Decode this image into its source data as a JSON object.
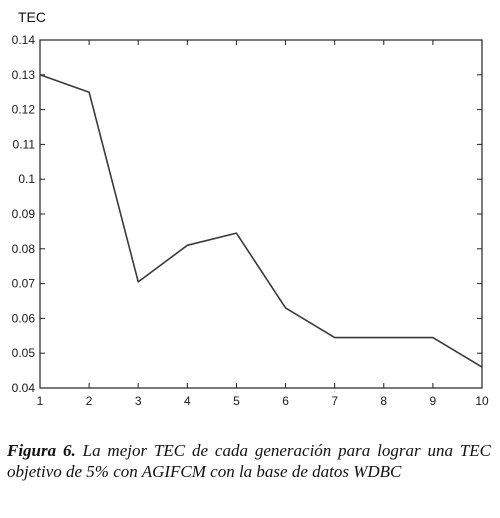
{
  "chart_data": {
    "type": "line",
    "title": "",
    "ylabel": "TEC",
    "xlabel": "",
    "x": [
      1,
      2,
      3,
      4,
      5,
      6,
      7,
      8,
      9,
      10
    ],
    "series": [
      {
        "values": [
          0.13,
          0.125,
          0.0705,
          0.081,
          0.0845,
          0.063,
          0.0545,
          0.0545,
          0.0545,
          0.046
        ]
      }
    ],
    "xlim": [
      1,
      10
    ],
    "ylim": [
      0.04,
      0.14
    ],
    "xticks": [
      "1",
      "2",
      "3",
      "4",
      "5",
      "6",
      "7",
      "8",
      "9",
      "10"
    ],
    "yticks": [
      "0.04",
      "0.05",
      "0.06",
      "0.07",
      "0.08",
      "0.09",
      "0.1",
      "0.11",
      "0.12",
      "0.13",
      "0.14"
    ],
    "grid": false,
    "line_color": "#3a3a3a"
  },
  "caption": {
    "label": "Figura 6.",
    "text": " La mejor TEC de cada generación para lograr una TEC objetivo de 5% con AGIFCM con la base de datos WDBC"
  }
}
